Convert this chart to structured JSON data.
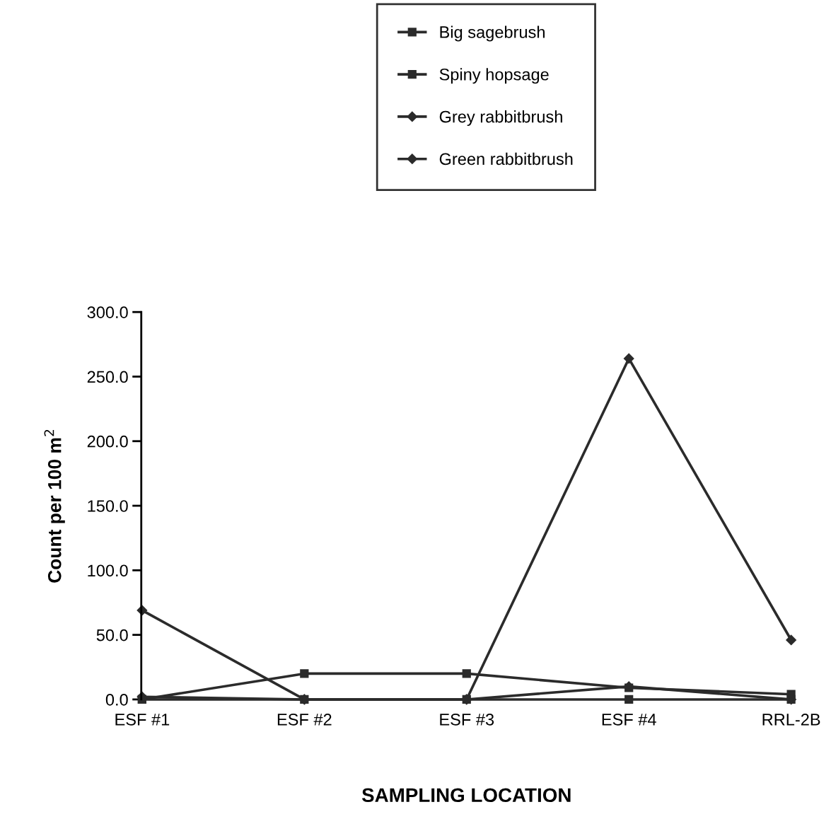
{
  "chart_data": {
    "type": "line",
    "xlabel": "SAMPLING LOCATION",
    "ylabel": "Count per 100 m$^{2}$",
    "categories": [
      "ESF #1",
      "ESF #2",
      "ESF #3",
      "ESF #4",
      "RRL-2B"
    ],
    "series": [
      {
        "name": "Big sagebrush",
        "color": "#2b2b2b",
        "marker": "square",
        "values": [
          0,
          20,
          20,
          9,
          4
        ]
      },
      {
        "name": "Spiny hopsage",
        "color": "#2b2b2b",
        "marker": "square",
        "values": [
          0,
          0,
          0,
          0,
          0
        ]
      },
      {
        "name": "Grey rabbitbrush",
        "color": "#2b2b2b",
        "marker": "diamond",
        "values": [
          69,
          0,
          0,
          264,
          46
        ]
      },
      {
        "name": "Green rabbitbrush",
        "color": "#2b2b2b",
        "marker": "diamond",
        "values": [
          2,
          0,
          0,
          10,
          0
        ]
      }
    ],
    "ylim": [
      0,
      300
    ],
    "yticks": [
      {
        "value": 0,
        "label": "0.0"
      },
      {
        "value": 50,
        "label": "50.0"
      },
      {
        "value": 100,
        "label": "100.0"
      },
      {
        "value": 150,
        "label": "150.0"
      },
      {
        "value": 200,
        "label": "200.0"
      },
      {
        "value": 250,
        "label": "250.0"
      },
      {
        "value": 300,
        "label": "300.0"
      }
    ],
    "legend": "top",
    "grid": false,
    "line_style": "solid"
  }
}
